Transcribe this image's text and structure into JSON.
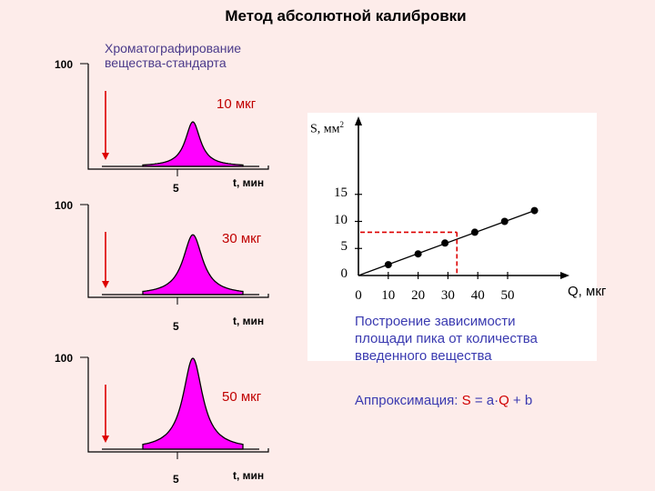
{
  "title": "Метод абсолютной калибровки",
  "subtitle": [
    "Хроматографирование",
    "вещества-стандарта"
  ],
  "chromatograms": [
    {
      "label_100": "100",
      "tick_5": "5",
      "x_label": "t, мин",
      "mass_label": "10 мкг",
      "peak_level": 0.45
    },
    {
      "label_100": "100",
      "tick_5": "5",
      "x_label": "t, мин",
      "mass_label": "30 мкг",
      "peak_level": 0.7
    },
    {
      "label_100": "100",
      "tick_5": "5",
      "x_label": "t, мин",
      "mass_label": "50 мкг",
      "peak_level": 1.0
    }
  ],
  "chart_data": {
    "type": "scatter",
    "ylabel": "S, мм",
    "ylabel_sup": "2",
    "xlabel": "Q, мкг",
    "xlim": [
      0,
      60
    ],
    "ylim": [
      0,
      17
    ],
    "x_ticks": [
      "0",
      "10",
      "20",
      "30",
      "40",
      "50"
    ],
    "y_ticks": [
      "0",
      "5",
      "10",
      "15"
    ],
    "points": [
      {
        "x": 10,
        "y": 2
      },
      {
        "x": 20,
        "y": 4
      },
      {
        "x": 29,
        "y": 6
      },
      {
        "x": 39,
        "y": 8
      },
      {
        "x": 49,
        "y": 10
      },
      {
        "x": 59,
        "y": 12
      }
    ],
    "fit_line": {
      "x_start": 0,
      "y_start": 0,
      "x_end": 59,
      "y_end": 12
    },
    "guide": {
      "x": 33,
      "y": 8
    },
    "colors": {
      "points": "#000000",
      "guide": "#dd0000",
      "peak_fill": "#ff00ff",
      "arrow": "#dd0000"
    }
  },
  "caption": [
    "Построение зависимости",
    "площади пика от количества",
    "введенного вещества"
  ],
  "approximation": {
    "prefix": "Аппроксимация: ",
    "S": "S",
    "eq": " = a·",
    "Q": "Q",
    "suffix": " + b"
  }
}
